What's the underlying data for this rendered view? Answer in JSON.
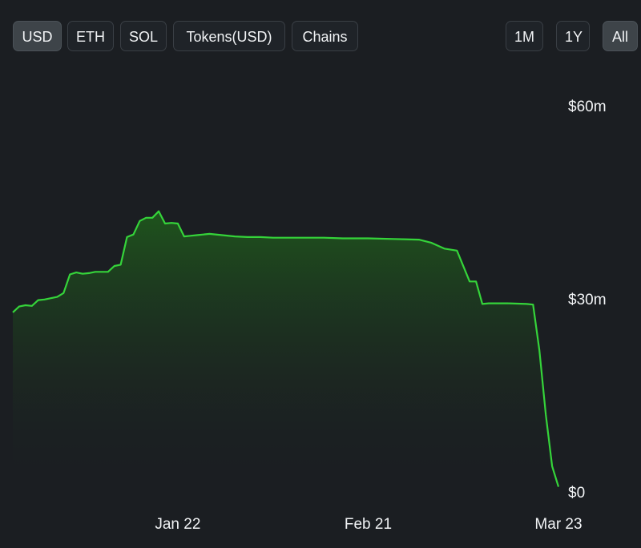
{
  "currency_tabs": [
    {
      "label": "USD",
      "active": true
    },
    {
      "label": "ETH",
      "active": false
    },
    {
      "label": "SOL",
      "active": false
    },
    {
      "label": "Tokens(USD)",
      "active": false
    },
    {
      "label": "Chains",
      "active": false
    }
  ],
  "range_tabs": [
    {
      "label": "1M",
      "active": false
    },
    {
      "label": "1Y",
      "active": false
    },
    {
      "label": "All",
      "active": true
    }
  ],
  "colors": {
    "line": "#35d43a",
    "fill_top": "#1f5a1c",
    "background": "#1b1e22"
  },
  "chart_data": {
    "type": "area",
    "x_start": "2022-12-27",
    "x_end": "2023-03-23",
    "y_ticks": [
      {
        "value": 0,
        "label": "$0"
      },
      {
        "value": 30000000,
        "label": "$30m"
      },
      {
        "value": 60000000,
        "label": "$60m"
      }
    ],
    "x_ticks": [
      {
        "date": "2023-01-22",
        "label": "Jan 22"
      },
      {
        "date": "2023-02-21",
        "label": "Feb 21"
      },
      {
        "date": "2023-03-23",
        "label": "Mar 23"
      }
    ],
    "ylim": [
      0,
      60000000
    ],
    "grid": false,
    "series": [
      {
        "x": [
          "2022-12-27",
          "2022-12-28",
          "2022-12-29",
          "2022-12-30",
          "2022-12-31",
          "2023-01-01",
          "2023-01-02",
          "2023-01-03",
          "2023-01-04",
          "2023-01-05",
          "2023-01-06",
          "2023-01-07",
          "2023-01-08",
          "2023-01-09",
          "2023-01-10",
          "2023-01-11",
          "2023-01-12",
          "2023-01-13",
          "2023-01-14",
          "2023-01-15",
          "2023-01-16",
          "2023-01-17",
          "2023-01-18",
          "2023-01-19",
          "2023-01-20",
          "2023-01-21",
          "2023-01-22",
          "2023-01-23",
          "2023-01-24",
          "2023-01-25",
          "2023-01-27",
          "2023-01-29",
          "2023-01-31",
          "2023-02-02",
          "2023-02-04",
          "2023-02-06",
          "2023-02-08",
          "2023-02-11",
          "2023-02-14",
          "2023-02-17",
          "2023-02-21",
          "2023-02-25",
          "2023-03-01",
          "2023-03-03",
          "2023-03-05",
          "2023-03-07",
          "2023-03-09",
          "2023-03-10",
          "2023-03-11",
          "2023-03-12",
          "2023-03-13",
          "2023-03-15",
          "2023-03-18",
          "2023-03-19",
          "2023-03-20",
          "2023-03-21",
          "2023-03-22",
          "2023-03-23"
        ],
        "y": [
          27900000,
          28800000,
          29000000,
          28900000,
          29800000,
          29900000,
          30100000,
          30300000,
          30900000,
          33800000,
          34100000,
          33900000,
          34000000,
          34200000,
          34200000,
          34200000,
          35100000,
          35300000,
          39600000,
          40000000,
          42100000,
          42600000,
          42600000,
          43600000,
          41700000,
          41800000,
          41700000,
          39700000,
          39800000,
          39900000,
          40100000,
          39900000,
          39700000,
          39600000,
          39600000,
          39500000,
          39500000,
          39500000,
          39500000,
          39400000,
          39400000,
          39300000,
          39200000,
          38700000,
          37800000,
          37500000,
          32700000,
          32700000,
          29200000,
          29300000,
          29300000,
          29300000,
          29200000,
          29100000,
          22000000,
          12000000,
          4000000,
          800000
        ]
      }
    ]
  }
}
